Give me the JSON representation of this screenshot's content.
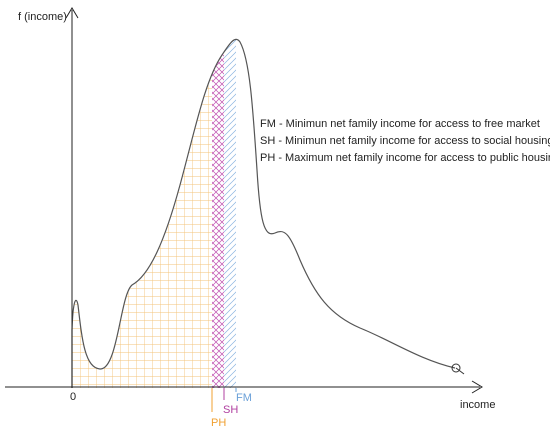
{
  "y_axis_label": "f (income)",
  "x_axis_label": "income",
  "origin_label": "0",
  "markers": [
    {
      "label": "PH"
    },
    {
      "label": "SH"
    },
    {
      "label": "FM"
    }
  ],
  "legend": [
    "FM - Minimun net family income for access to free market",
    "SH - Minimun net family income for access to social housing",
    "PH - Maximum net family income for access to public housing"
  ]
}
